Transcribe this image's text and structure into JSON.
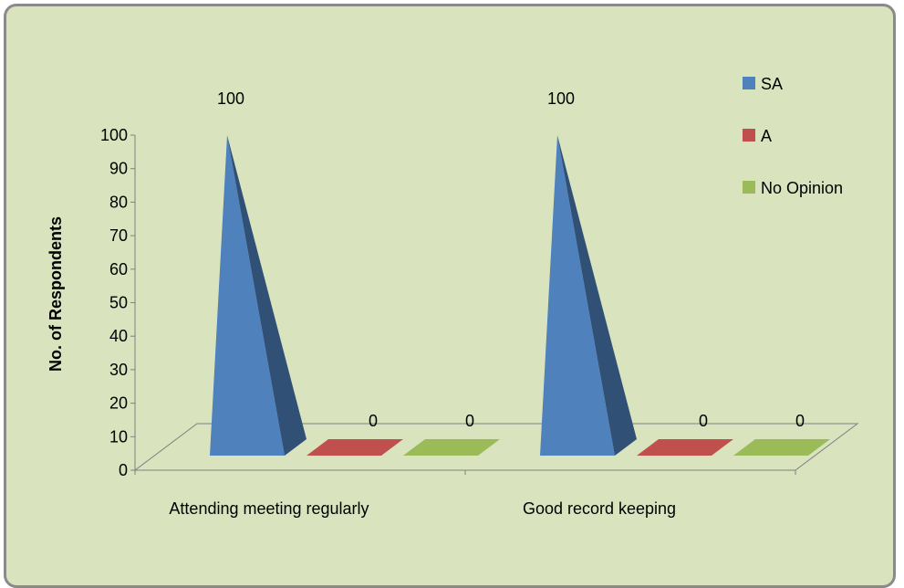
{
  "chart_data": {
    "type": "bar",
    "title": "",
    "xlabel": "",
    "ylabel": "No. of Respondents",
    "ylim": [
      0,
      100
    ],
    "yticks": [
      0,
      10,
      20,
      30,
      40,
      50,
      60,
      70,
      80,
      90,
      100
    ],
    "categories": [
      "Attending meeting regularly",
      "Good record keeping"
    ],
    "series": [
      {
        "name": "SA",
        "values": [
          100,
          100
        ],
        "color": "#4f81bd"
      },
      {
        "name": "A",
        "values": [
          0,
          0
        ],
        "color": "#c0504d"
      },
      {
        "name": "No Opinion",
        "values": [
          0,
          0
        ],
        "color": "#9bbb59"
      }
    ],
    "data_labels": true,
    "legend": "top-right",
    "grid": false,
    "style": "3d-pyramid"
  }
}
